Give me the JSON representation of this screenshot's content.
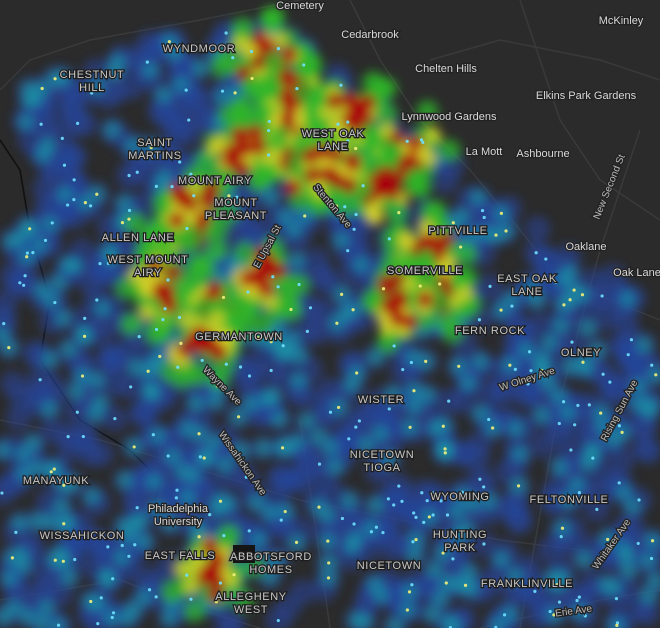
{
  "places": [
    "Cemetery",
    "Cedarbrook",
    "McKinley",
    "Chelten Hills",
    "Elkins Park Gardens",
    "Lynnwood Gardens",
    "La Mott",
    "Ashbourne",
    "Oaklane",
    "Oak Lane"
  ],
  "neighborhoods": [
    {
      "lines": [
        "WYNDMOOR"
      ]
    },
    {
      "lines": [
        "CHESTNUT",
        "HILL"
      ]
    },
    {
      "lines": [
        "WEST OAK",
        "LANE"
      ]
    },
    {
      "lines": [
        "SAINT",
        "MARTINS"
      ]
    },
    {
      "lines": [
        "MOUNT AIRY"
      ]
    },
    {
      "lines": [
        "MOUNT",
        "PLEASANT"
      ]
    },
    {
      "lines": [
        "ALLEN LANE"
      ]
    },
    {
      "lines": [
        "WEST MOUNT",
        "AIRY"
      ]
    },
    {
      "lines": [
        "EAST OAK",
        "LANE"
      ]
    },
    {
      "lines": [
        "SOMERVILLE"
      ]
    },
    {
      "lines": [
        "FERN ROCK"
      ]
    },
    {
      "lines": [
        "GERMANTOWN"
      ]
    },
    {
      "lines": [
        "OLNEY"
      ]
    },
    {
      "lines": [
        "WISTER"
      ]
    },
    {
      "lines": [
        "NICETOWN",
        "TIOGA"
      ]
    },
    {
      "lines": [
        "MANAYUNK"
      ]
    },
    {
      "lines": [
        "WYOMING"
      ]
    },
    {
      "lines": [
        "FELTONVILLE"
      ]
    },
    {
      "lines": [
        "WISSAHICKON"
      ]
    },
    {
      "lines": [
        "HUNTING",
        "PARK"
      ]
    },
    {
      "lines": [
        "EAST FALLS"
      ]
    },
    {
      "lines": [
        "ABBOTSFORD",
        "HOMES"
      ]
    },
    {
      "lines": [
        "NICETOWN"
      ]
    },
    {
      "lines": [
        "FRANKLINVILLE"
      ]
    },
    {
      "lines": [
        "ALLEGHENY",
        "WEST"
      ]
    },
    {
      "lines": [
        "PITTVILLE"
      ]
    }
  ],
  "landmarks": [
    {
      "lines": [
        "Philadelphia",
        "University"
      ]
    }
  ],
  "roads": [
    "New Second St",
    "E Upsal St",
    "Stenton Ave",
    "W Olney Ave",
    "Wayne Ave",
    "Rising Sun Ave",
    "Wissahickon Ave",
    "Whitaker Ave",
    "Erie Ave"
  ]
}
